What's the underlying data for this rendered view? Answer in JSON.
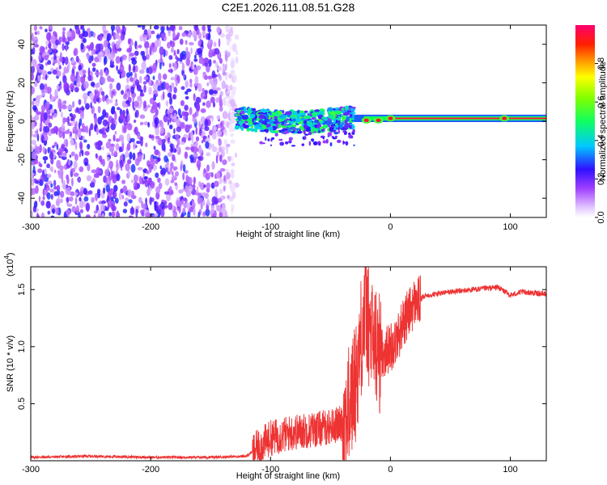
{
  "chart_data": [
    {
      "type": "heatmap",
      "title": "C2E1.2026.111.08.51.G28",
      "xlabel": "Height of straight line (km)",
      "ylabel": "Frequency (Hz)",
      "xlim": [
        -300,
        130
      ],
      "ylim": [
        -50,
        50
      ],
      "xticks": [
        -300,
        -200,
        -100,
        0,
        100
      ],
      "xtick_labels": [
        "-300",
        "-200",
        "-100",
        "0",
        "100"
      ],
      "yticks": [
        -40,
        -20,
        0,
        20,
        40
      ],
      "ytick_labels": [
        "-40",
        "-20",
        "0",
        "20",
        "40"
      ],
      "colorbar": {
        "label": "Normalized spectral amplitude",
        "range": [
          0,
          1
        ],
        "ticks": [
          0,
          0.2,
          0.4,
          0.6,
          0.8
        ],
        "tick_labels": [
          "0.0",
          "0.2",
          "0.4",
          "0.6",
          "0.8"
        ]
      },
      "regions": [
        {
          "x_start": -300,
          "x_end": -128,
          "description": "broadband noise",
          "freq_range": [
            -50,
            50
          ],
          "amplitude": 0.15
        },
        {
          "x_start": -128,
          "x_end": -30,
          "description": "band near 0 Hz",
          "freq_center": 2,
          "freq_width": 5,
          "amplitude": 0.4
        },
        {
          "x_start": -30,
          "x_end": 130,
          "description": "narrow carrier",
          "freq_center": 1.5,
          "freq_width": 1.2,
          "amplitude": 0.95
        }
      ],
      "carrier_peaks": [
        {
          "x": -20,
          "freq": 0.5
        },
        {
          "x": -10,
          "freq": 0.5
        },
        {
          "x": 0,
          "freq": 1.5
        },
        {
          "x": 95,
          "freq": 1.5
        }
      ]
    },
    {
      "type": "line",
      "title": "",
      "xlabel": "Height of straight line (km)",
      "ylabel": "SNR (10 * v/v)",
      "y_scale_label": "(x10",
      "y_scale_exponent": "4",
      "xlim": [
        -300,
        130
      ],
      "ylim": [
        0,
        1.7
      ],
      "xticks": [
        -300,
        -200,
        -100,
        0,
        100
      ],
      "xtick_labels": [
        "-300",
        "-200",
        "-100",
        "0",
        "100"
      ],
      "yticks": [
        0.5,
        1.0,
        1.5
      ],
      "ytick_labels": [
        "0.5",
        "1.0",
        "1.5"
      ],
      "series": [
        {
          "name": "SNR",
          "color": "#ee3333",
          "x": [
            -300,
            -250,
            -200,
            -150,
            -120,
            -110,
            -100,
            -80,
            -60,
            -50,
            -40,
            -35,
            -30,
            -27,
            -25,
            -22,
            -20,
            -18,
            -15,
            -12,
            -10,
            -5,
            0,
            5,
            10,
            20,
            30,
            50,
            70,
            90,
            100,
            110,
            130
          ],
          "y": [
            0.03,
            0.04,
            0.03,
            0.03,
            0.04,
            0.12,
            0.2,
            0.25,
            0.28,
            0.3,
            0.33,
            0.45,
            0.65,
            0.85,
            1.05,
            1.25,
            1.35,
            1.15,
            1.05,
            1.0,
            0.95,
            0.95,
            1.0,
            1.05,
            1.2,
            1.38,
            1.45,
            1.48,
            1.5,
            1.52,
            1.45,
            1.48,
            1.46
          ]
        }
      ]
    }
  ]
}
